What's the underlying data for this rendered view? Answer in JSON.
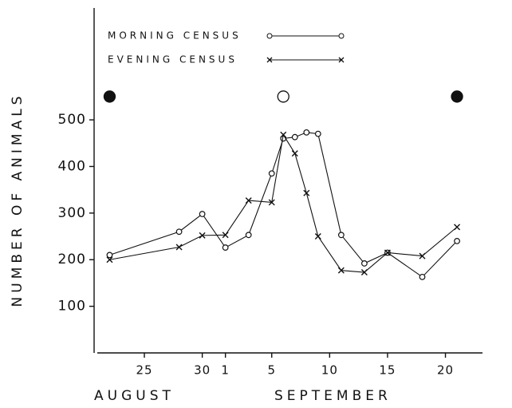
{
  "chart_data": {
    "type": "line",
    "ylabel": "NUMBER OF ANIMALS",
    "month_labels": [
      "AUGUST",
      "SEPTEMBER"
    ],
    "xlim": [
      20.66,
      54.2
    ],
    "ylim": [
      0,
      740
    ],
    "xticks": [
      25,
      30,
      {
        "value": 32,
        "label": "1"
      },
      {
        "value": 36,
        "label": "5"
      },
      {
        "value": 41,
        "label": "10"
      },
      {
        "value": 46,
        "label": "15"
      },
      {
        "value": 51,
        "label": "20"
      }
    ],
    "yticks": [
      100,
      200,
      300,
      400,
      500
    ],
    "series": [
      {
        "name": "MORNING CENSUS",
        "marker": "circle",
        "color": "#111",
        "x": [
          22,
          28,
          30,
          32,
          34,
          36,
          37,
          38,
          39,
          40,
          42,
          44,
          46,
          49,
          52
        ],
        "values": [
          210,
          260,
          298,
          226,
          253,
          385,
          460,
          463,
          473,
          470,
          253,
          192,
          215,
          163,
          240
        ]
      },
      {
        "name": "EVENING CENSUS",
        "marker": "cross",
        "color": "#111",
        "x": [
          22,
          28,
          30,
          32,
          34,
          36,
          37,
          38,
          39,
          40,
          42,
          44,
          46,
          49,
          52
        ],
        "values": [
          200,
          227,
          252,
          253,
          327,
          323,
          468,
          428,
          343,
          250,
          177,
          173,
          215,
          208,
          270
        ]
      }
    ],
    "phase_markers": {
      "x": [
        22,
        37,
        52
      ],
      "y": 550,
      "filled": [
        true,
        false,
        true
      ]
    }
  }
}
